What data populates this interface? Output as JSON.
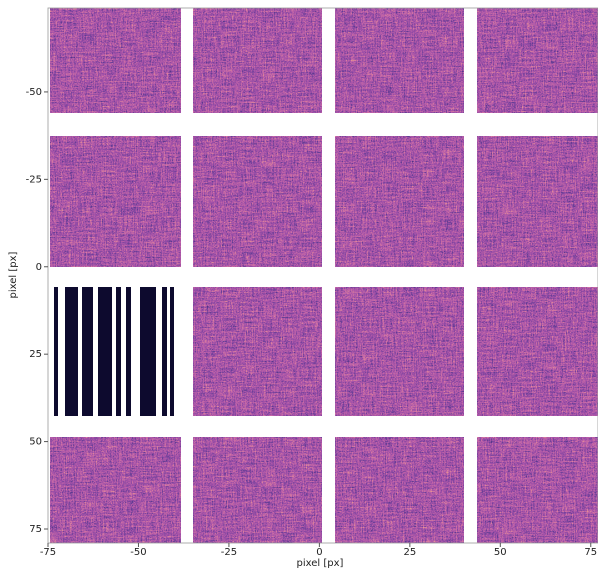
{
  "chart_data": {
    "type": "image",
    "xlabel": "pixel [px]",
    "ylabel": "pixel [px]",
    "xlim": [
      -75,
      77
    ],
    "ylim": [
      -74,
      79
    ],
    "xticks": [
      -75,
      -50,
      -25,
      0,
      25,
      50,
      75
    ],
    "yticks": [
      -50,
      -25,
      0,
      25,
      50,
      75
    ],
    "y_inverted": true
  }
}
